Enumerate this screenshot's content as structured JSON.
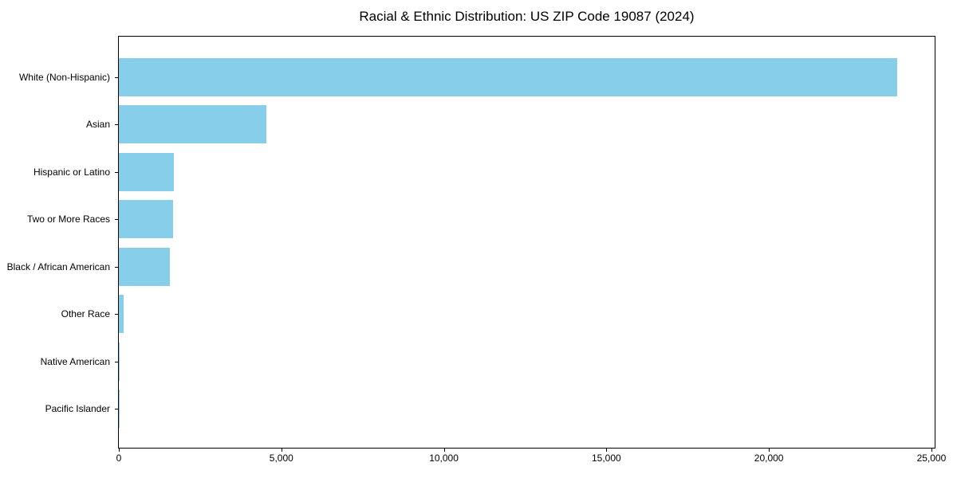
{
  "chart_data": {
    "type": "bar",
    "orientation": "horizontal",
    "title": "Racial & Ethnic Distribution: US ZIP Code 19087 (2024)",
    "categories": [
      "White (Non-Hispanic)",
      "Asian",
      "Hispanic or Latino",
      "Two or More Races",
      "Black / African American",
      "Other Race",
      "Native American",
      "Pacific Islander"
    ],
    "values": [
      23950,
      4540,
      1700,
      1680,
      1570,
      150,
      20,
      10
    ],
    "xlabel": "",
    "ylabel": "",
    "xlim": [
      0,
      25100
    ],
    "x_ticks": [
      0,
      5000,
      10000,
      15000,
      20000,
      25000
    ],
    "x_tick_labels": [
      "0",
      "5,000",
      "10,000",
      "15,000",
      "20,000",
      "25,000"
    ],
    "bar_color": "#87CEEB",
    "axis_color": "#000000",
    "background_color": "#ffffff",
    "grid": false,
    "legend": null
  }
}
